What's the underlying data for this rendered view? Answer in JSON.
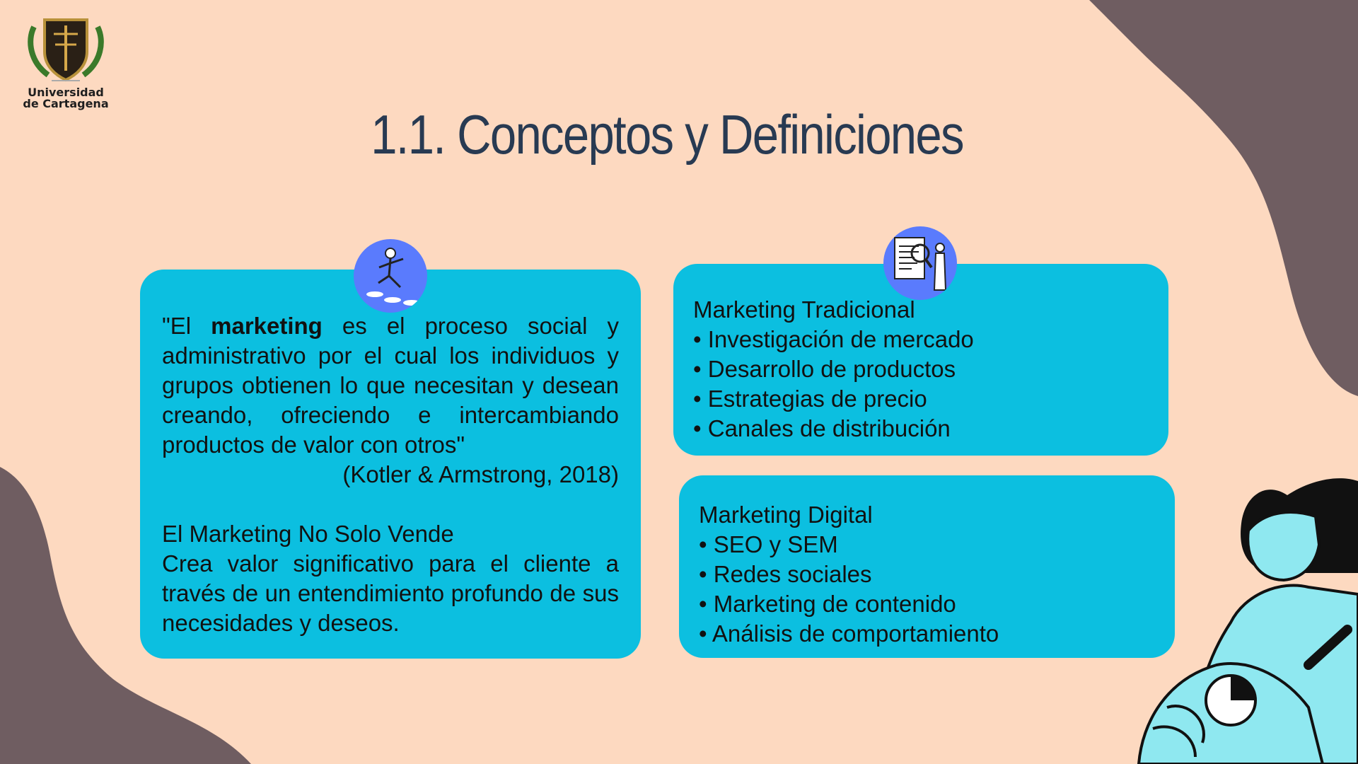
{
  "logo": {
    "line1": "Universidad",
    "line2": "de Cartagena"
  },
  "title": "1.1. Conceptos y Definiciones",
  "left_card": {
    "quote_open": "\"El ",
    "quote_bold": "marketing",
    "quote_rest": " es el proceso social y administrativo por el cual los individuos y grupos obtienen lo que necesitan y desean creando, ofreciendo e intercambiando productos de valor con otros\"",
    "citation": "(Kotler & Armstrong, 2018)",
    "subheading": "El Marketing No Solo Vende",
    "body": "Crea valor significativo para el cliente a través de un entendimiento profundo de sus necesidades y deseos."
  },
  "traditional_card": {
    "heading": "Marketing Tradicional",
    "items": [
      "Investigación de mercado",
      "Desarrollo de productos",
      "Estrategias de precio",
      "Canales de distribución"
    ]
  },
  "digital_card": {
    "heading": "Marketing Digital",
    "items": [
      "SEO y SEM",
      "Redes sociales",
      "Marketing de contenido",
      "Análisis de comportamiento"
    ]
  },
  "colors": {
    "background": "#fdd9c0",
    "card": "#0cbfe0",
    "blob": "#6f5d61",
    "title": "#283a52",
    "icon_circle": "#5a7bfd"
  }
}
